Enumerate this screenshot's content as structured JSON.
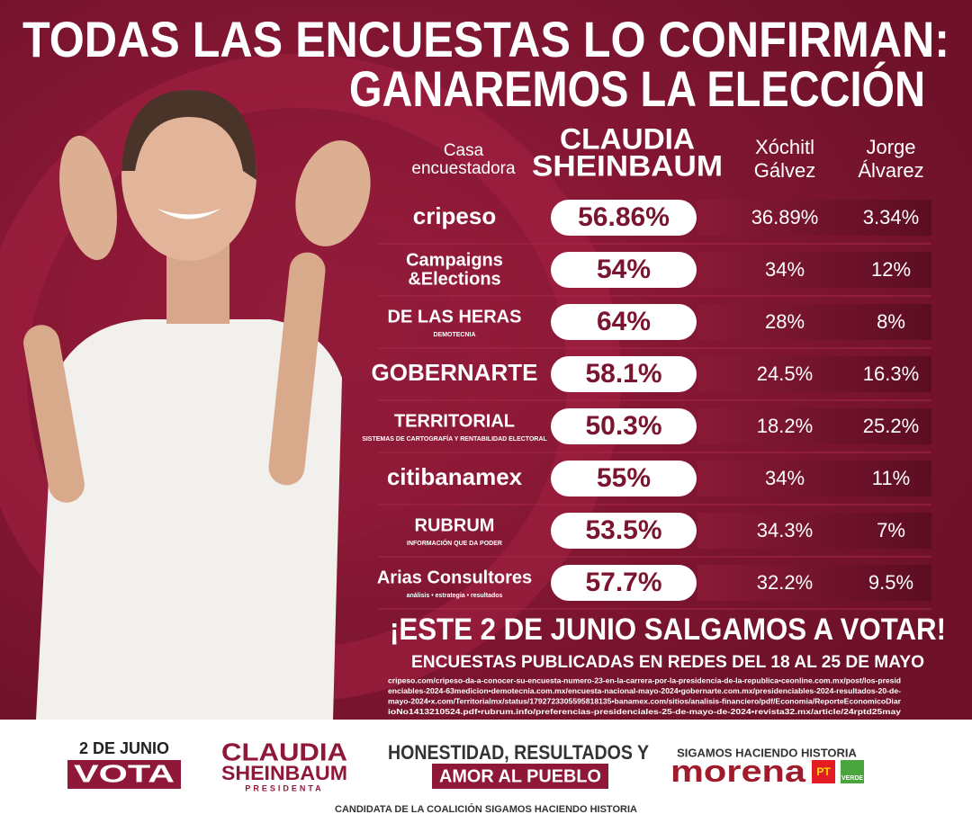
{
  "header": {
    "title_line1": "TODAS LAS ENCUESTAS LO CONFIRMAN:",
    "title_line2": "GANAREMOS LA ELECCIÓN"
  },
  "table": {
    "headers": [
      [
        "Casa",
        "encuestadora"
      ],
      [
        "CLAUDIA",
        "SHEINBAUM"
      ],
      [
        "Xóchitl",
        "Gálvez"
      ],
      [
        "Jorge",
        "Álvarez"
      ]
    ],
    "rows": [
      {
        "pollster": [
          "cripeso"
        ],
        "values": [
          "56.86%",
          "36.89%",
          "3.34%"
        ]
      },
      {
        "pollster": [
          "Campaigns",
          "&Elections"
        ],
        "values": [
          "54%",
          "34%",
          "12%"
        ]
      },
      {
        "pollster": [
          "DE LAS HERAS",
          "DEMOTECNIA"
        ],
        "values": [
          "64%",
          "28%",
          "8%"
        ]
      },
      {
        "pollster": [
          "GOBERNARTE"
        ],
        "values": [
          "58.1%",
          "24.5%",
          "16.3%"
        ]
      },
      {
        "pollster": [
          "TERRITORIAL",
          "SISTEMAS DE CARTOGRAFÍA Y RENTABILIDAD ELECTORAL"
        ],
        "values": [
          "50.3%",
          "18.2%",
          "25.2%"
        ]
      },
      {
        "pollster": [
          "citibanamex"
        ],
        "values": [
          "55%",
          "34%",
          "11%"
        ]
      },
      {
        "pollster": [
          "RUBRUM",
          "INFORMACIÓN QUE DA PODER"
        ],
        "values": [
          "53.5%",
          "34.3%",
          "7%"
        ]
      },
      {
        "pollster": [
          "Arias Consultores",
          "análisis • estrategia • resultados"
        ],
        "values": [
          "57.7%",
          "32.2%",
          "9.5%"
        ]
      }
    ]
  },
  "footer": {
    "call": "¡ESTE 2 DE JUNIO SALGAMOS A VOTAR!",
    "subtitle": "ENCUESTAS PUBLICADAS EN REDES DEL 18 AL 25 DE MAYO",
    "sources": [
      "cripeso.com/cripeso-da-a-conocer-su-encuesta-numero-23-en-la-carrera-por-la-presidencia-de-la-republica•ceonline.com.mx/post/los-presid",
      "enciables-2024-63medicion•demotecnia.com.mx/encuesta-nacional-mayo-2024•gobernarte.com.mx/presidenciables-2024-resultados-20-de-",
      "mayo-2024•x.com/Territorialmx/status/1792723305595818135•banamex.com/sitios/analisis-financiero/pdf/Economia/ReporteEconomicoDiar",
      "ioNo1413210524.pdf•rubrum.info/preferencias-presidenciales-25-de-mayo-de-2024•revista32.mx/article/24rptd25may"
    ]
  },
  "bottom": {
    "vote_date": "2 DE JUNIO",
    "vote": "VOTA",
    "candidate_first": "CLAUDIA",
    "candidate_last": "SHEINBAUM",
    "candidate_role": "PRESIDENTA",
    "slogan_line1": "HONESTIDAD, RESULTADOS Y",
    "slogan_line2": "AMOR AL PUEBLO",
    "coalition_tag": "SIGAMOS HACIENDO HISTORIA",
    "party1": "morena",
    "party2": "PT",
    "party3": "VERDE",
    "disclaimer": "CANDIDATA DE LA COALICIÓN SIGAMOS HACIENDO HISTORIA"
  }
}
